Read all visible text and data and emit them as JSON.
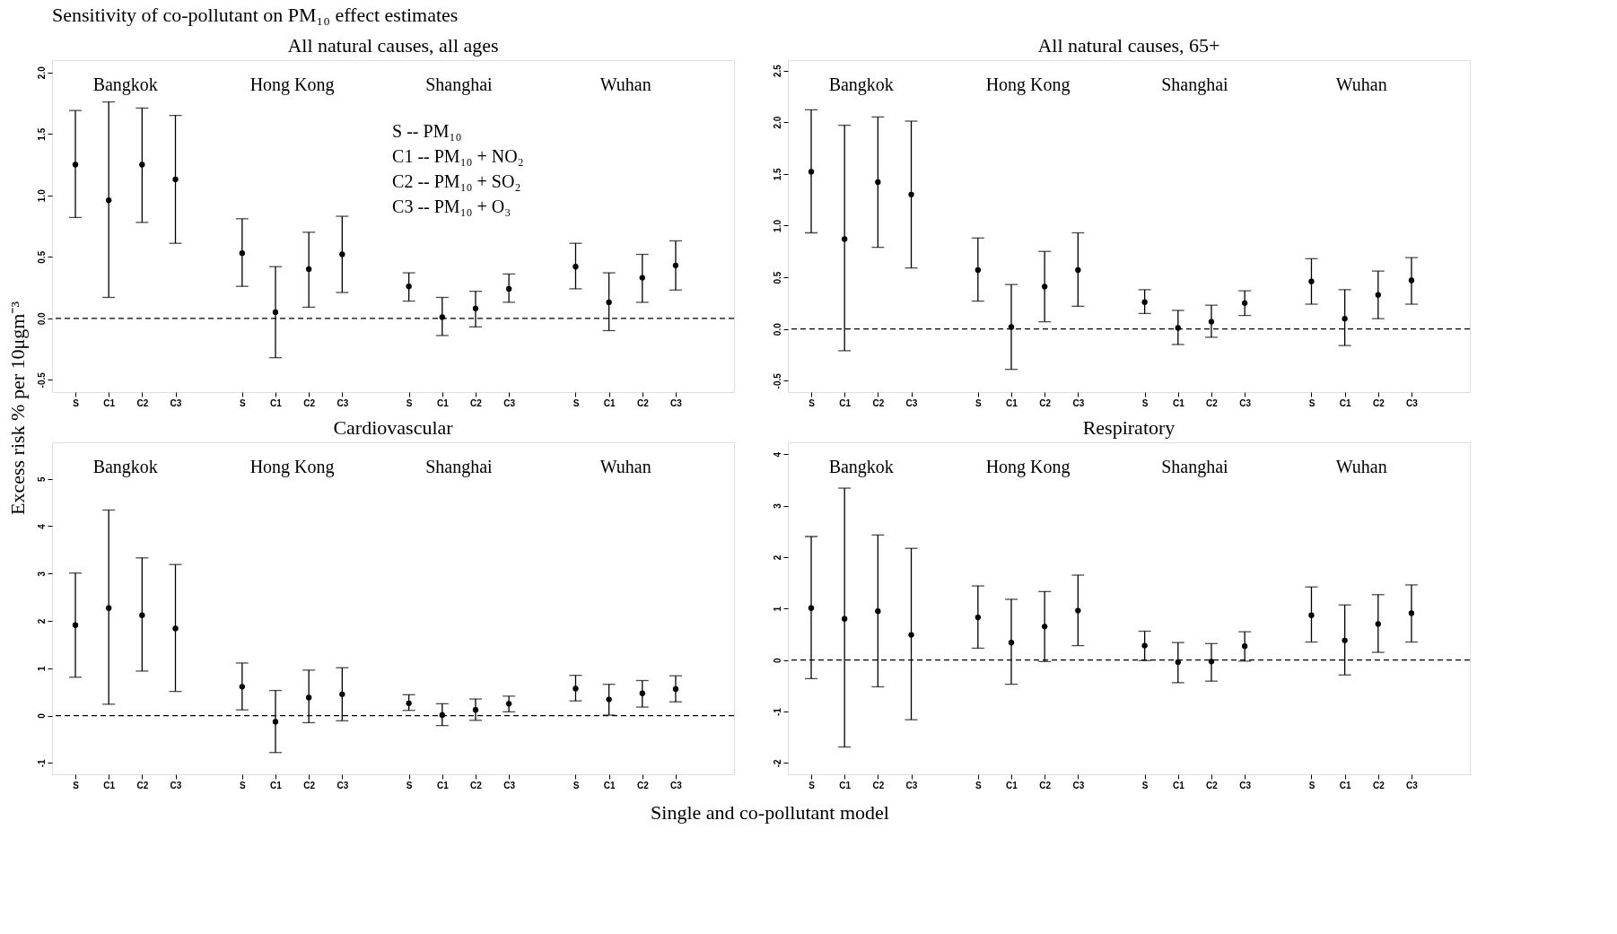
{
  "chart_data": [
    {
      "type": "scatter",
      "title": "All natural causes, all ages",
      "categories": [
        "S",
        "C1",
        "C2",
        "C3",
        null,
        "S",
        "C1",
        "C2",
        "C3",
        null,
        "S",
        "C1",
        "C2",
        "C3",
        null,
        "S",
        "C1",
        "C2",
        "C3"
      ],
      "series": [
        {
          "color": "#000000",
          "values": [
            1.25,
            0.96,
            1.25,
            1.13,
            null,
            0.53,
            0.05,
            0.4,
            0.52,
            null,
            0.26,
            0.01,
            0.08,
            0.24,
            null,
            0.42,
            0.13,
            0.33,
            0.43
          ],
          "errors": [
            [
              0.82,
              1.69
            ],
            [
              0.17,
              1.76
            ],
            [
              0.78,
              1.71
            ],
            [
              0.61,
              1.65
            ],
            null,
            [
              0.26,
              0.81
            ],
            [
              -0.32,
              0.42
            ],
            [
              0.09,
              0.7
            ],
            [
              0.21,
              0.83
            ],
            null,
            [
              0.14,
              0.37
            ],
            [
              -0.14,
              0.17
            ],
            [
              -0.07,
              0.22
            ],
            [
              0.13,
              0.36
            ],
            null,
            [
              0.24,
              0.61
            ],
            [
              -0.1,
              0.37
            ],
            [
              0.13,
              0.52
            ],
            [
              0.23,
              0.63
            ]
          ]
        }
      ],
      "ylim": [
        -0.6,
        2.1
      ],
      "yticks": [
        -0.5,
        {
          "value": 0,
          "label": "0.0"
        },
        0.5,
        {
          "value": 1,
          "label": "1.0"
        },
        1.5,
        {
          "value": 2,
          "label": "2.0"
        }
      ],
      "ref_lines": [
        {
          "axis": "y",
          "value": 0,
          "line_style": "dashed"
        }
      ],
      "annotations": [
        "Bangkok",
        "Hong Kong",
        "Shanghai",
        "Wuhan",
        "S -- PM₁₀",
        "C1 -- PM₁₀ + NO₂",
        "C2 -- PM₁₀ + SO₂",
        "C3 -- PM₁₀ + O₃",
        "Sensitivity of co-pollutant on PM₁₀ effect estimates"
      ],
      "marker": "circle",
      "grid": false,
      "ylabel": "Excess risk % per 10μgm⁻³"
    },
    {
      "type": "scatter",
      "title": "All natural causes, 65+",
      "categories": [
        "S",
        "C1",
        "C2",
        "C3",
        null,
        "S",
        "C1",
        "C2",
        "C3",
        null,
        "S",
        "C1",
        "C2",
        "C3",
        null,
        "S",
        "C1",
        "C2",
        "C3"
      ],
      "series": [
        {
          "color": "#000000",
          "values": [
            1.52,
            0.87,
            1.42,
            1.3,
            null,
            0.57,
            0.02,
            0.41,
            0.57,
            null,
            0.26,
            0.01,
            0.07,
            0.25,
            null,
            0.46,
            0.1,
            0.33,
            0.47
          ],
          "errors": [
            [
              0.93,
              2.12
            ],
            [
              -0.21,
              1.97
            ],
            [
              0.79,
              2.05
            ],
            [
              0.59,
              2.01
            ],
            null,
            [
              0.27,
              0.88
            ],
            [
              -0.39,
              0.43
            ],
            [
              0.07,
              0.75
            ],
            [
              0.22,
              0.93
            ],
            null,
            [
              0.15,
              0.38
            ],
            [
              -0.15,
              0.18
            ],
            [
              -0.08,
              0.23
            ],
            [
              0.13,
              0.37
            ],
            null,
            [
              0.24,
              0.68
            ],
            [
              -0.16,
              0.38
            ],
            [
              0.1,
              0.56
            ],
            [
              0.24,
              0.69
            ]
          ]
        }
      ],
      "ylim": [
        -0.61,
        2.6
      ],
      "yticks": [
        -0.5,
        {
          "value": 0,
          "label": "0.0"
        },
        0.5,
        {
          "value": 1,
          "label": "1.0"
        },
        1.5,
        {
          "value": 2,
          "label": "2.0"
        },
        2.5
      ],
      "ref_lines": [
        {
          "axis": "y",
          "value": 0,
          "line_style": "dashed"
        }
      ],
      "annotations": [
        "Bangkok",
        "Hong Kong",
        "Shanghai",
        "Wuhan"
      ],
      "marker": "circle",
      "grid": false
    },
    {
      "type": "scatter",
      "title": "Cardiovascular",
      "categories": [
        "S",
        "C1",
        "C2",
        "C3",
        null,
        "S",
        "C1",
        "C2",
        "C3",
        null,
        "S",
        "C1",
        "C2",
        "C3",
        null,
        "S",
        "C1",
        "C2",
        "C3"
      ],
      "series": [
        {
          "color": "#000000",
          "values": [
            1.91,
            2.27,
            2.12,
            1.84,
            null,
            0.61,
            -0.13,
            0.38,
            0.45,
            null,
            0.26,
            0.01,
            0.12,
            0.25,
            null,
            0.57,
            0.34,
            0.47,
            0.56
          ],
          "errors": [
            [
              0.81,
              3.01
            ],
            [
              0.24,
              4.34
            ],
            [
              0.94,
              3.33
            ],
            [
              0.51,
              3.19
            ],
            null,
            [
              0.12,
              1.11
            ],
            [
              -0.78,
              0.53
            ],
            [
              -0.15,
              0.96
            ],
            [
              -0.11,
              1.01
            ],
            null,
            [
              0.11,
              0.44
            ],
            [
              -0.21,
              0.25
            ],
            [
              -0.1,
              0.35
            ],
            [
              0.08,
              0.41
            ],
            null,
            [
              0.31,
              0.85
            ],
            [
              0.01,
              0.66
            ],
            [
              0.18,
              0.74
            ],
            [
              0.29,
              0.84
            ]
          ]
        }
      ],
      "ylim": [
        -1.24,
        5.77
      ],
      "yticks": [
        -1,
        0,
        1,
        2,
        3,
        4,
        5
      ],
      "ref_lines": [
        {
          "axis": "y",
          "value": 0,
          "line_style": "dashed"
        }
      ],
      "annotations": [
        "Bangkok",
        "Hong Kong",
        "Shanghai",
        "Wuhan"
      ],
      "marker": "circle",
      "grid": false,
      "xlabel": "Single and co-pollutant model"
    },
    {
      "type": "scatter",
      "title": "Respiratory",
      "categories": [
        "S",
        "C1",
        "C2",
        "C3",
        null,
        "S",
        "C1",
        "C2",
        "C3",
        null,
        "S",
        "C1",
        "C2",
        "C3",
        null,
        "S",
        "C1",
        "C2",
        "C3"
      ],
      "series": [
        {
          "color": "#000000",
          "values": [
            1.01,
            0.8,
            0.95,
            0.49,
            null,
            0.83,
            0.34,
            0.65,
            0.96,
            null,
            0.28,
            -0.04,
            -0.03,
            0.27,
            null,
            0.87,
            0.38,
            0.7,
            0.91
          ],
          "errors": [
            [
              -0.36,
              2.4
            ],
            [
              -1.69,
              3.34
            ],
            [
              -0.52,
              2.43
            ],
            [
              -1.16,
              2.17
            ],
            null,
            [
              0.23,
              1.44
            ],
            [
              -0.47,
              1.18
            ],
            [
              -0.03,
              1.33
            ],
            [
              0.28,
              1.65
            ],
            null,
            [
              -0.01,
              0.56
            ],
            [
              -0.44,
              0.34
            ],
            [
              -0.41,
              0.32
            ],
            [
              -0.02,
              0.55
            ],
            null,
            [
              0.35,
              1.42
            ],
            [
              -0.29,
              1.07
            ],
            [
              0.15,
              1.27
            ],
            [
              0.35,
              1.46
            ]
          ]
        }
      ],
      "ylim": [
        -2.22,
        4.23
      ],
      "yticks": [
        -2,
        -1,
        0,
        1,
        2,
        3,
        4
      ],
      "ref_lines": [
        {
          "axis": "y",
          "value": 0,
          "line_style": "dashed"
        }
      ],
      "annotations": [
        "Bangkok",
        "Hong Kong",
        "Shanghai",
        "Wuhan"
      ],
      "marker": "circle",
      "grid": false
    }
  ]
}
